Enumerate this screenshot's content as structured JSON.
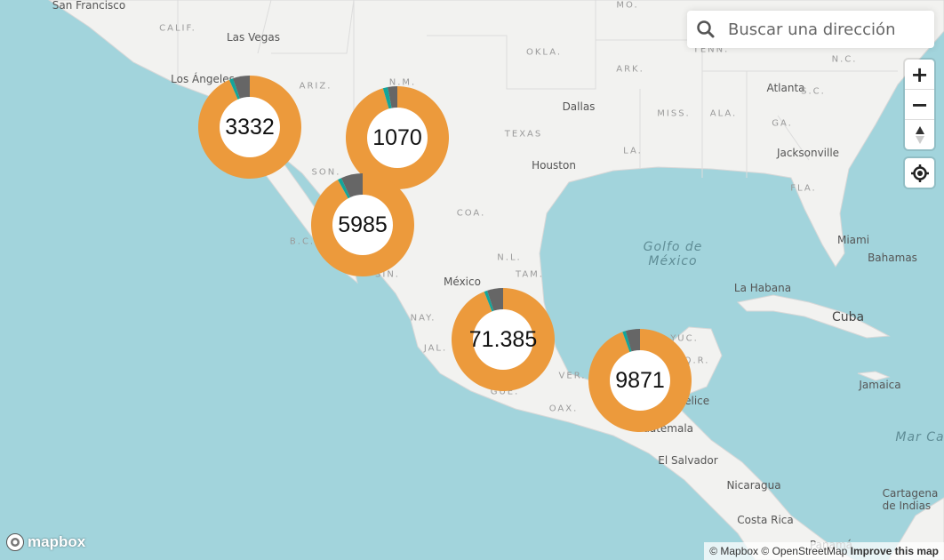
{
  "search": {
    "placeholder": "Buscar una dirección",
    "icon": "search-icon"
  },
  "controls": {
    "zoom_in": "+",
    "zoom_out": "−",
    "compass": "compass-icon",
    "geolocate": "geolocate-icon"
  },
  "colors": {
    "sea": "#a2d4dc",
    "land": "#f2f2f0",
    "cluster_main": "#ec9a3c",
    "cluster_secondary": "#13a59a",
    "cluster_tertiary": "#666666"
  },
  "labels": [
    "San Francisco",
    "CALIF.",
    "Las Vegas",
    "Los Ángeles",
    "ARIZ.",
    "N.M.",
    "MO.",
    "OKLA.",
    "ARK.",
    "TENN.",
    "N.C.",
    "Atlanta",
    "S.C.",
    "Dallas",
    "MISS.",
    "ALA.",
    "GA.",
    "TEXAS",
    "Houston",
    "LA.",
    "Jacksonville",
    "FLA.",
    "SON.",
    "COA.",
    "B.C.",
    "N.L.",
    "TAM.",
    "SIN.",
    "México",
    "NAY.",
    "JAL.",
    "GUE.",
    "OAX.",
    "VER.",
    "YUC.",
    "Q.R.",
    "Golfo de\nMéxico",
    "Miami",
    "Bahamas",
    "La Habana",
    "Cuba",
    "Jamaica",
    "Belice",
    "Guatemala",
    "El Salvador",
    "Nicaragua",
    "Costa Rica",
    "Panamá",
    "Cartagena\nde Indias",
    "Mar Ca"
  ],
  "clusters": [
    {
      "label": "3332",
      "fractions": {
        "main": 0.935,
        "secondary": 0.012,
        "tertiary": 0.053
      }
    },
    {
      "label": "1070",
      "fractions": {
        "main": 0.955,
        "secondary": 0.015,
        "tertiary": 0.03
      }
    },
    {
      "label": "5985",
      "fractions": {
        "main": 0.92,
        "secondary": 0.012,
        "tertiary": 0.068
      }
    },
    {
      "label": "71.385",
      "fractions": {
        "main": 0.94,
        "secondary": 0.01,
        "tertiary": 0.05
      }
    },
    {
      "label": "9871",
      "fractions": {
        "main": 0.945,
        "secondary": 0.01,
        "tertiary": 0.045
      }
    }
  ],
  "logo": "mapbox",
  "attribution": {
    "mapbox": "© Mapbox",
    "osm": "© OpenStreetMap",
    "improve": "Improve this map"
  }
}
